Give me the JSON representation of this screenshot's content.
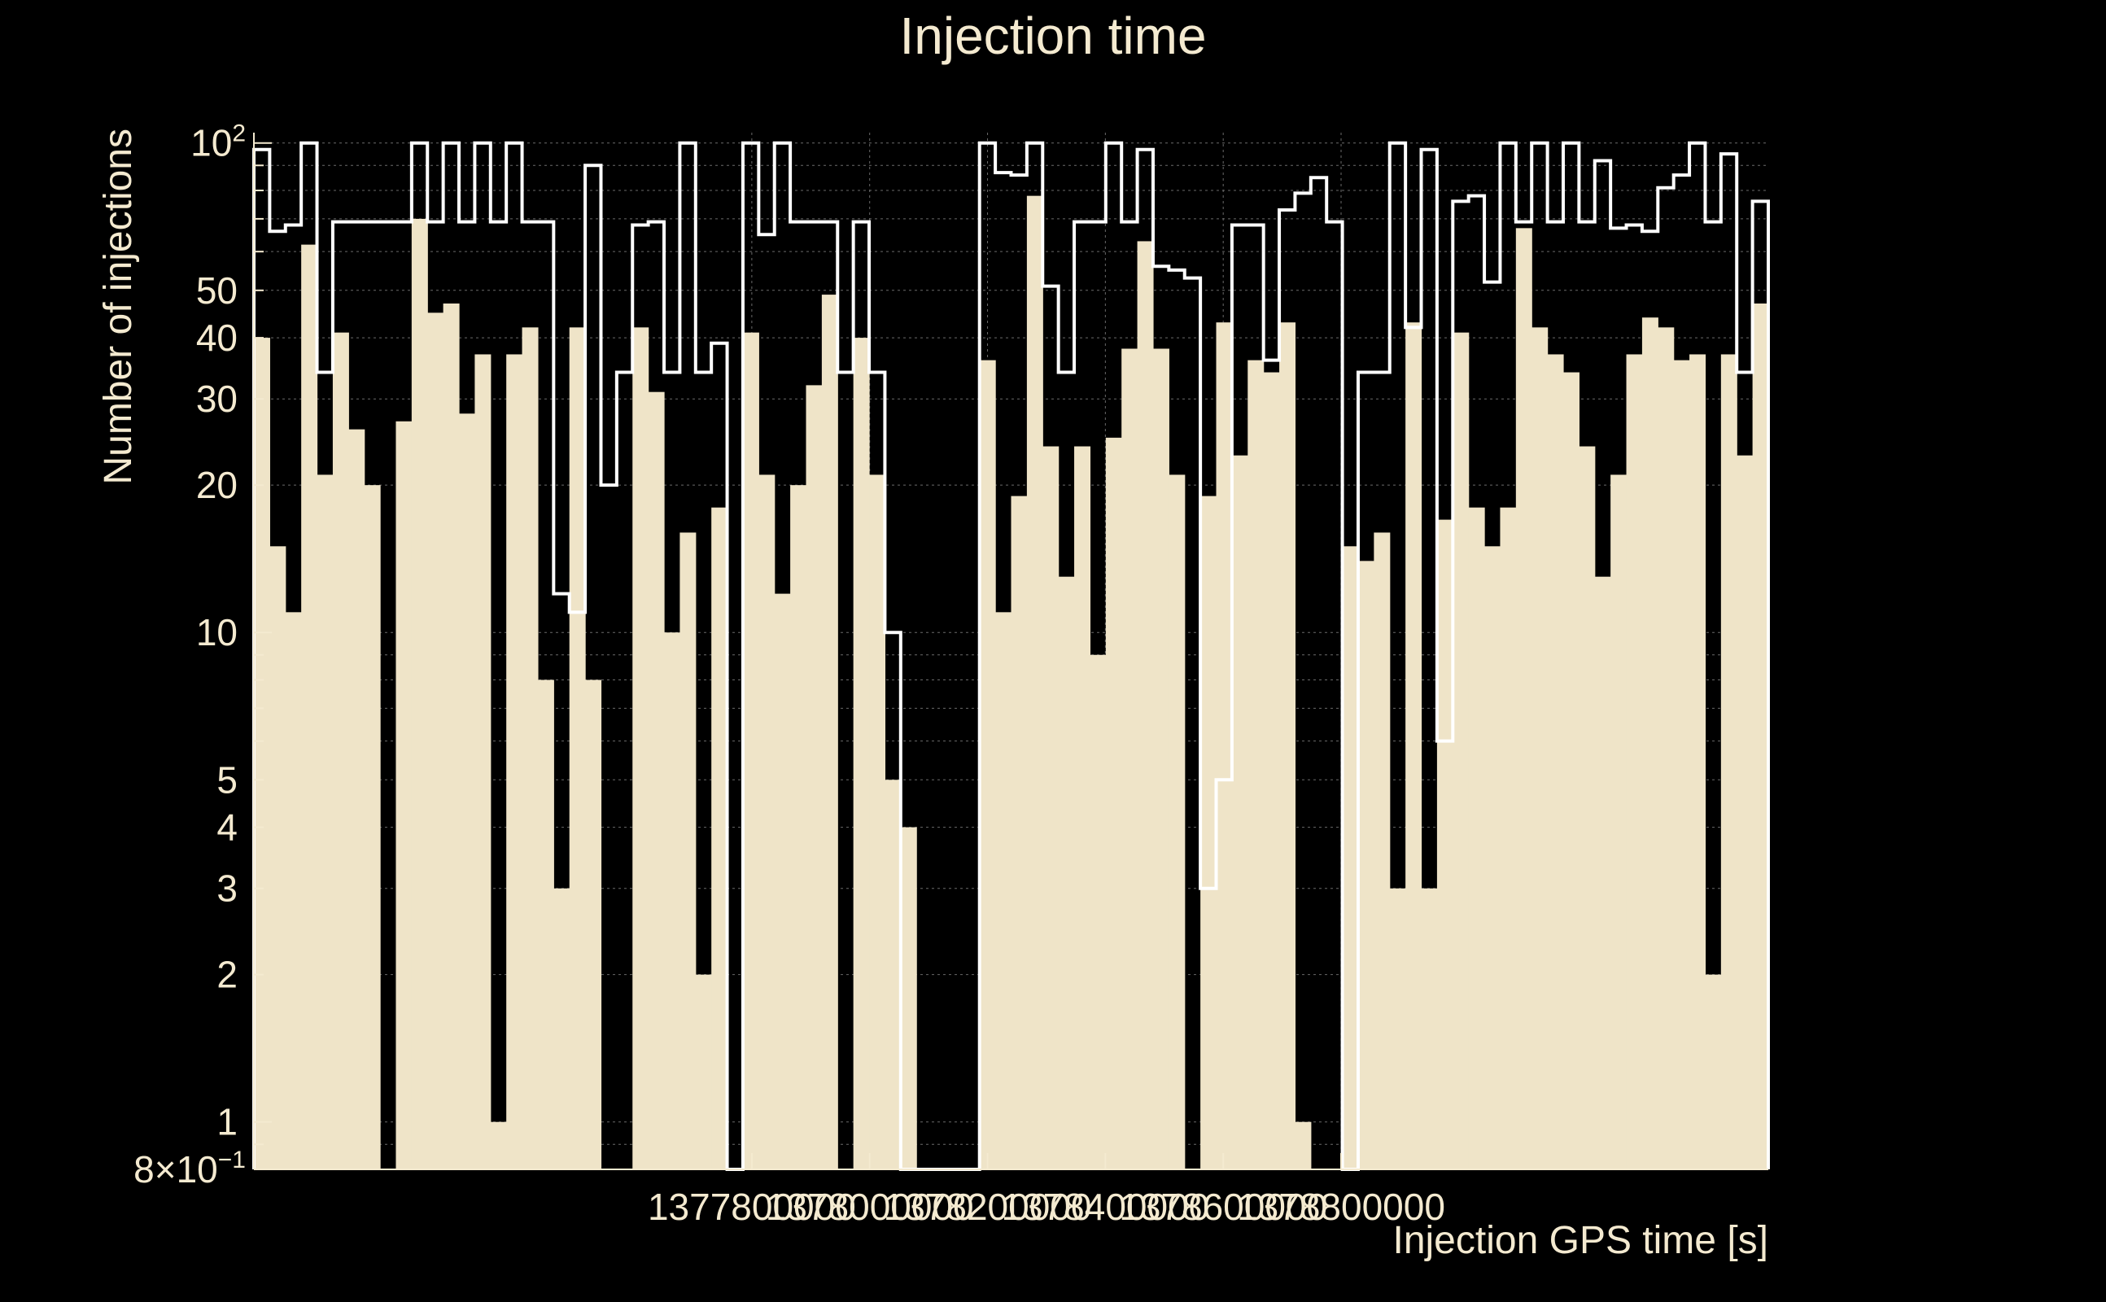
{
  "colors": {
    "background": "#000000",
    "fill": "#efe4c8",
    "outline": "#ffffff",
    "text": "#f4ead0",
    "grid": "#6a6a6a"
  },
  "chart_data": {
    "type": "bar",
    "title": "Injection time",
    "xlabel": "Injection GPS time [s]",
    "ylabel": "Number of injections",
    "y_scale": "log",
    "ylim": [
      0.8,
      105
    ],
    "xlim": [
      1376955000,
      1379525000
    ],
    "grid": true,
    "x_tick_labels": [
      {
        "value": 1377800000,
        "label": "1377800000"
      },
      {
        "value": 1378000000,
        "label": "1378000000"
      },
      {
        "value": 1378200000,
        "label": "1378200000"
      },
      {
        "value": 1378400000,
        "label": "1378400000"
      },
      {
        "value": 1378600000,
        "label": "1378600000"
      },
      {
        "value": 1378800000,
        "label": "1378800000"
      }
    ],
    "y_tick_labels": [
      {
        "value": 100,
        "label": "10",
        "sup": "2"
      },
      {
        "value": 50,
        "label": "50"
      },
      {
        "value": 40,
        "label": "40"
      },
      {
        "value": 30,
        "label": "30"
      },
      {
        "value": 20,
        "label": "20"
      },
      {
        "value": 10,
        "label": "10"
      },
      {
        "value": 5,
        "label": "5"
      },
      {
        "value": 4,
        "label": "4"
      },
      {
        "value": 3,
        "label": "3"
      },
      {
        "value": 2,
        "label": "2"
      },
      {
        "value": 1,
        "label": "1"
      },
      {
        "value": 0.8,
        "label": "8×10",
        "sup": "−1"
      }
    ],
    "bin_edges": [
      1376955000,
      1379525000
    ],
    "series": [
      {
        "style": "filled",
        "values": [
          40,
          15,
          11,
          62,
          21,
          41,
          26,
          20,
          0.8,
          27,
          70,
          45,
          47,
          28,
          37,
          1,
          37,
          42,
          8,
          3,
          42,
          8,
          0.8,
          0.8,
          42,
          31,
          10,
          16,
          2,
          18,
          0.8,
          41,
          21,
          12,
          20,
          32,
          49,
          0.8,
          40,
          21,
          5,
          4,
          0.8,
          0.8,
          0.8,
          0.8,
          36,
          11,
          19,
          78,
          24,
          13,
          24,
          9,
          25,
          38,
          63,
          38,
          21,
          0.8,
          19,
          43,
          23,
          36,
          34,
          43,
          1,
          0.8,
          0.8,
          15,
          14,
          16,
          3,
          43,
          3,
          17,
          41,
          18,
          15,
          18,
          67,
          42,
          37,
          34,
          24,
          13,
          21,
          37,
          44,
          42,
          36,
          37,
          2,
          37,
          23,
          47
        ]
      },
      {
        "style": "outline",
        "values": [
          97,
          66,
          68,
          100,
          34,
          69,
          69,
          69,
          69,
          69,
          100,
          69,
          100,
          69,
          100,
          69,
          100,
          69,
          69,
          12,
          11,
          90,
          20,
          34,
          68,
          69,
          34,
          100,
          34,
          39,
          0.8,
          100,
          65,
          100,
          69,
          69,
          69,
          34,
          69,
          34,
          10,
          0.8,
          0.8,
          0.8,
          0.8,
          0.8,
          100,
          87,
          86,
          100,
          51,
          34,
          69,
          69,
          100,
          69,
          97,
          56,
          55,
          53,
          3,
          5,
          68,
          68,
          36,
          73,
          79,
          85,
          69,
          0.8,
          34,
          34,
          100,
          42,
          97,
          6,
          76,
          78,
          52,
          100,
          69,
          100,
          69,
          100,
          69,
          92,
          67,
          68,
          66,
          81,
          86,
          100,
          69,
          95,
          34,
          76
        ]
      }
    ]
  }
}
